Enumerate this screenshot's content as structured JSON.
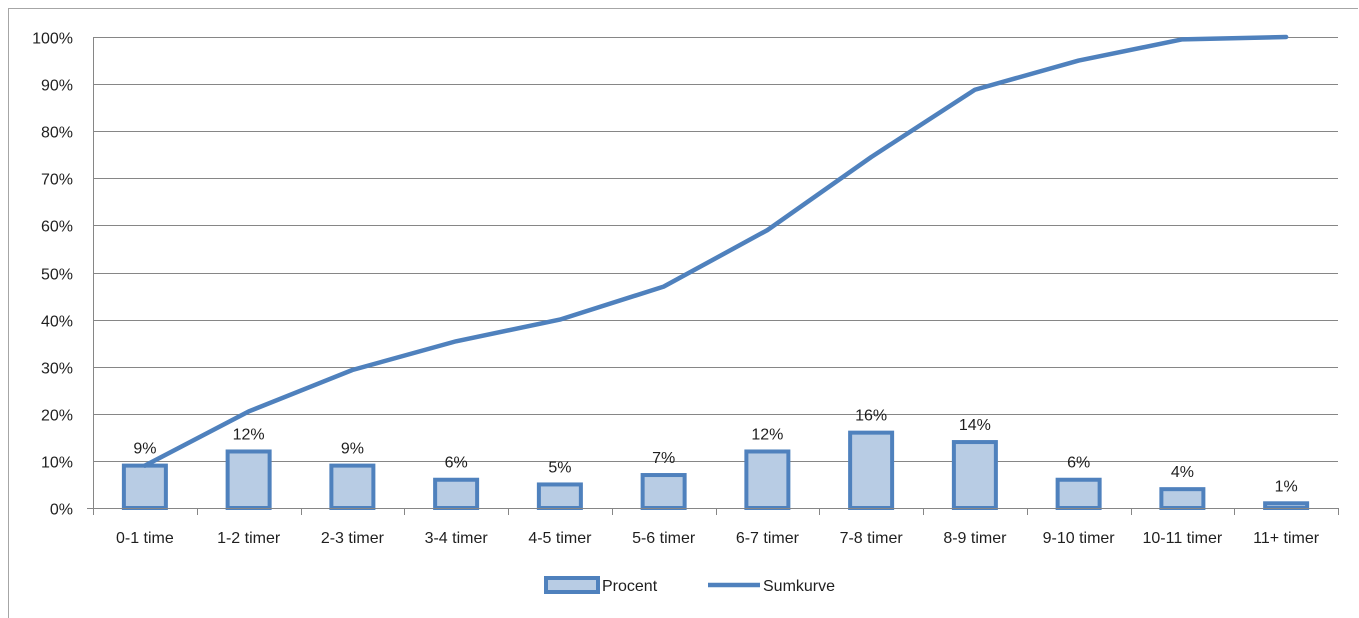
{
  "chart_data": {
    "type": "bar",
    "categories": [
      "0-1 time",
      "1-2 timer",
      "2-3 timer",
      "3-4 timer",
      "4-5 timer",
      "5-6 timer",
      "6-7 timer",
      "7-8 timer",
      "8-9 timer",
      "9-10 timer",
      "10-11 timer",
      "11+ timer"
    ],
    "series": [
      {
        "name": "Procent",
        "type": "bar",
        "values": [
          9,
          12,
          9,
          6,
          5,
          7,
          12,
          16,
          14,
          6,
          4,
          1
        ],
        "data_labels": [
          "9%",
          "12%",
          "9%",
          "6%",
          "5%",
          "7%",
          "12%",
          "16%",
          "14%",
          "6%",
          "4%",
          "1%"
        ],
        "fill": "#b8cce4",
        "stroke": "#4f81bd"
      },
      {
        "name": "Sumkurve",
        "type": "line",
        "values": [
          9,
          20.5,
          29.3,
          35.4,
          40,
          47,
          59,
          74.5,
          88.8,
          95,
          99.5,
          100
        ],
        "color": "#4f81bd"
      }
    ],
    "y_ticks": [
      "0%",
      "10%",
      "20%",
      "30%",
      "40%",
      "50%",
      "60%",
      "70%",
      "80%",
      "90%",
      "100%"
    ],
    "ylim": [
      0,
      100
    ],
    "grid": true,
    "legend_position": "bottom",
    "title": "",
    "xlabel": "",
    "ylabel": ""
  }
}
